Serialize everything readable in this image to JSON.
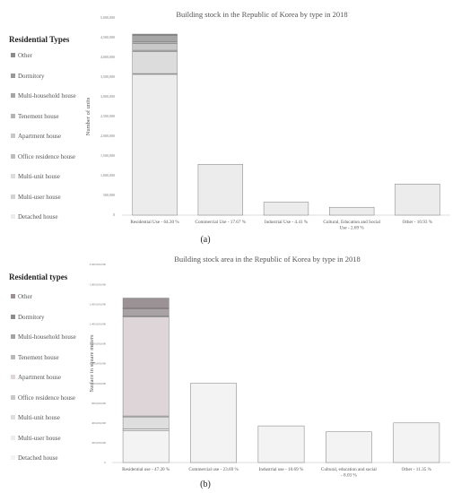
{
  "chart_data": [
    {
      "type": "bar",
      "stacked": true,
      "title": "Building stock in the Republic of Korea by type in 2018",
      "panel_label": "(a)",
      "ylabel": "Number of units",
      "xlabel": "",
      "ylim": [
        0,
        5000000
      ],
      "yticks": [
        "0",
        "500,000",
        "1,000,000",
        "1,500,000",
        "2,000,000",
        "2,500,000",
        "3,000,000",
        "3,500,000",
        "4,000,000",
        "4,500,000",
        "5,000,000"
      ],
      "grid": false,
      "legend_title": "Residential Types",
      "legend_placement": "left",
      "categories": [
        "Residential Use - 64.30 %",
        "Commercial Use - 17.67 %",
        "Industrial Use - 4.41 %",
        "Cultural, Education and Social Use - 2.69 %",
        "Other - 10.93 %"
      ],
      "series": [
        {
          "name": "Detached house",
          "color": "#ececec",
          "values": [
            3570000,
            1290000,
            330000,
            200000,
            790000
          ]
        },
        {
          "name": "Multi-user house",
          "color": "#d2d2d2",
          "values": [
            20000,
            0,
            0,
            0,
            0
          ]
        },
        {
          "name": "Multi-unit house",
          "color": "#dcdcdc",
          "values": [
            560000,
            0,
            0,
            0,
            0
          ]
        },
        {
          "name": "Office residence house",
          "color": "#bdbdbd",
          "values": [
            30000,
            0,
            0,
            0,
            0
          ]
        },
        {
          "name": "Apartment house",
          "color": "#c8c8c8",
          "values": [
            170000,
            0,
            0,
            0,
            0
          ]
        },
        {
          "name": "Tenement house",
          "color": "#b4b4b4",
          "values": [
            50000,
            0,
            0,
            0,
            0
          ]
        },
        {
          "name": "Multi-household house",
          "color": "#a6a6a6",
          "values": [
            160000,
            0,
            0,
            0,
            0
          ]
        },
        {
          "name": "Dormitory",
          "color": "#999999",
          "values": [
            10000,
            0,
            0,
            0,
            0
          ]
        },
        {
          "name": "Other",
          "color": "#8c8c8c",
          "values": [
            20000,
            0,
            0,
            0,
            0
          ]
        }
      ]
    },
    {
      "type": "bar",
      "stacked": true,
      "title": "Building stock area in the Republic of Korea by type in 2018",
      "panel_label": "(b)",
      "ylabel": "Surface in square meters",
      "xlabel": "",
      "ylim": [
        0,
        2000000000
      ],
      "yticks": [
        "0",
        "200,000,000",
        "400,000,000",
        "600,000,000",
        "800,000,000",
        "1,000,000,000",
        "1,200,000,000",
        "1,400,000,000",
        "1,600,000,000",
        "1,800,000,000",
        "2,000,000,000"
      ],
      "grid": false,
      "legend_title": "Residential types",
      "legend_placement": "left",
      "categories": [
        "Residential use - 47.20 %",
        "Commercial use - 23.69 %",
        "Industrial use - 10.69 %",
        "Cultural, education and social - 8.03 %",
        "Other - 11.35 %"
      ],
      "series": [
        {
          "name": "Detached house",
          "color": "#f3f3f3",
          "values": [
            320000000,
            800000000,
            370000000,
            310000000,
            400000000
          ]
        },
        {
          "name": "Multi-user house",
          "color": "#ececec",
          "values": [
            20000000,
            0,
            0,
            0,
            0
          ]
        },
        {
          "name": "Multi-unit house",
          "color": "#dedede",
          "values": [
            120000000,
            0,
            0,
            0,
            0
          ]
        },
        {
          "name": "Office residence house",
          "color": "#c8c8c8",
          "values": [
            10000000,
            0,
            0,
            0,
            0
          ]
        },
        {
          "name": "Apartment house",
          "color": "#ddd5d7",
          "values": [
            1000000000,
            0,
            0,
            0,
            0
          ]
        },
        {
          "name": "Tenement house",
          "color": "#b9b9b9",
          "values": [
            10000000,
            0,
            0,
            0,
            0
          ]
        },
        {
          "name": "Multi-household house",
          "color": "#a9a2a4",
          "values": [
            70000000,
            0,
            0,
            0,
            0
          ]
        },
        {
          "name": "Dormitory",
          "color": "#8f8a8c",
          "values": [
            10000000,
            0,
            0,
            0,
            0
          ]
        },
        {
          "name": "Other",
          "color": "#9a9294",
          "values": [
            100000000,
            0,
            0,
            0,
            0
          ]
        }
      ]
    }
  ]
}
